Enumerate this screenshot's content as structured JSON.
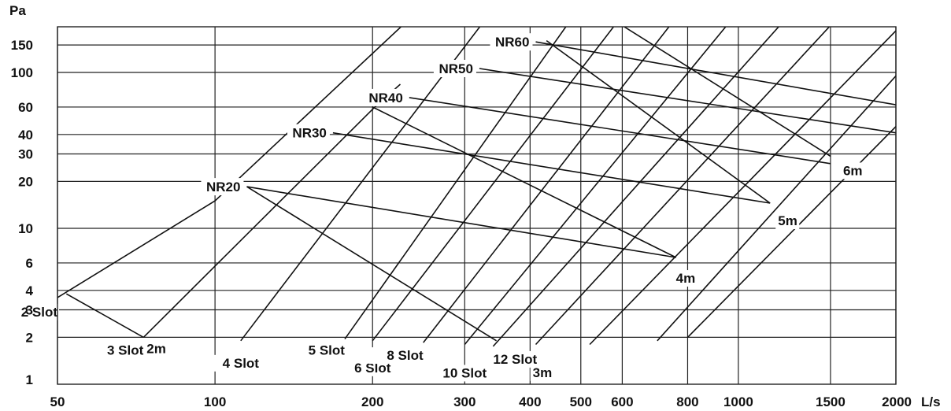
{
  "chart_data": {
    "type": "line",
    "title": "",
    "xlabel": "L/s",
    "ylabel": "Pa",
    "xscale": "log",
    "yscale": "log",
    "xlim": [
      50,
      2000
    ],
    "ylim": [
      1,
      200
    ],
    "grid": true,
    "legend": "none",
    "x_ticks": [
      50,
      100,
      200,
      300,
      400,
      500,
      600,
      800,
      1000,
      1500,
      2000
    ],
    "x_tick_labels": [
      "50",
      "100",
      "200",
      "300",
      "400",
      "500",
      "600",
      "800",
      "1000",
      "1500",
      "2000"
    ],
    "y_ticks": [
      1,
      2,
      3,
      4,
      6,
      10,
      20,
      30,
      40,
      60,
      100,
      150
    ],
    "y_tick_labels": [
      "1",
      "2",
      "3",
      "4",
      "6",
      "10",
      "20",
      "30",
      "40",
      "60",
      "100",
      "150"
    ],
    "slot_lines": [
      {
        "label": "2 Slot",
        "points": [
          [
            50,
            3.6
          ],
          [
            100,
            15
          ],
          [
            228,
            200
          ]
        ]
      },
      {
        "label": "3 Slot",
        "points": [
          [
            73,
            2.0
          ],
          [
            202,
            60
          ],
          [
            226,
            84
          ]
        ]
      },
      {
        "label": "4 Slot",
        "points": [
          [
            112,
            1.9
          ],
          [
            322,
            200
          ]
        ]
      },
      {
        "label": "5 Slot",
        "points": [
          [
            177,
            1.95
          ],
          [
            470,
            200
          ]
        ]
      },
      {
        "label": "6 Slot",
        "points": [
          [
            200,
            1.9
          ],
          [
            580,
            200
          ]
        ]
      },
      {
        "label": "8 Slot",
        "points": [
          [
            250,
            1.85
          ],
          [
            740,
            200
          ]
        ]
      },
      {
        "label": "10 Slot",
        "points": [
          [
            300,
            1.8
          ],
          [
            950,
            200
          ]
        ]
      },
      {
        "label": "12 Slot",
        "points": [
          [
            340,
            1.75
          ],
          [
            1200,
            200
          ]
        ]
      },
      {
        "label": "",
        "points": [
          [
            410,
            1.8
          ],
          [
            1500,
            200
          ]
        ]
      },
      {
        "label": "",
        "points": [
          [
            520,
            1.8
          ],
          [
            2000,
            185
          ]
        ]
      },
      {
        "label": "",
        "points": [
          [
            700,
            1.9
          ],
          [
            2000,
            95
          ]
        ]
      },
      {
        "label": "",
        "points": [
          [
            800,
            2.0
          ],
          [
            2000,
            45
          ]
        ]
      }
    ],
    "nr_lines": [
      {
        "label": "NR20",
        "points": [
          [
            115,
            18.5
          ],
          [
            760,
            6.5
          ]
        ]
      },
      {
        "label": "NR30",
        "points": [
          [
            168,
            41
          ],
          [
            1150,
            14.5
          ]
        ]
      },
      {
        "label": "NR40",
        "points": [
          [
            235,
            69
          ],
          [
            1500,
            26
          ]
        ]
      },
      {
        "label": "NR50",
        "points": [
          [
            320,
            106
          ],
          [
            2000,
            41
          ]
        ]
      },
      {
        "label": "NR60",
        "points": [
          [
            410,
            157
          ],
          [
            2000,
            62
          ]
        ]
      }
    ],
    "throw_lines": [
      {
        "label": "2m",
        "points": [
          [
            52,
            3.8
          ],
          [
            73,
            2.0
          ]
        ]
      },
      {
        "label": "3m",
        "points": [
          [
            115,
            18.5
          ],
          [
            345,
            1.9
          ]
        ]
      },
      {
        "label": "4m",
        "points": [
          [
            200,
            60
          ],
          [
            760,
            6.5
          ]
        ]
      },
      {
        "label": "5m",
        "points": [
          [
            430,
            160
          ],
          [
            1150,
            14.5
          ]
        ]
      },
      {
        "label": "6m",
        "points": [
          [
            600,
            200
          ],
          [
            1500,
            29
          ]
        ]
      }
    ]
  }
}
